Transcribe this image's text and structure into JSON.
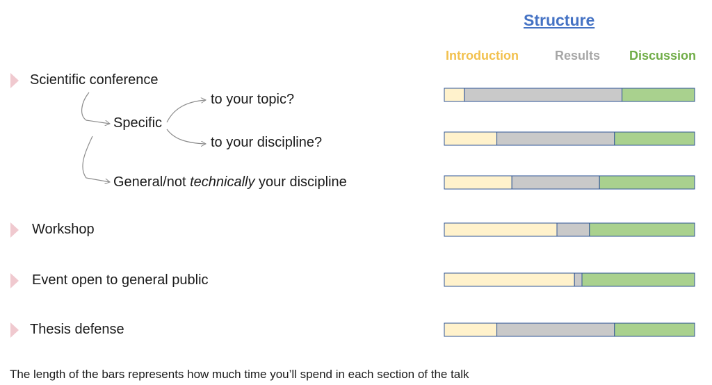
{
  "title": "Structure",
  "legend": [
    {
      "label": "Introduction",
      "color": "#f2c14e"
    },
    {
      "label": "Results",
      "color": "#a6a6a6"
    },
    {
      "label": "Discussion",
      "color": "#70ad47"
    }
  ],
  "items": [
    {
      "label": "Scientific conference"
    },
    {
      "label": "Workshop"
    },
    {
      "label": "Event open to general public"
    },
    {
      "label": "Thesis defense"
    }
  ],
  "branch": {
    "specific": "Specific",
    "topic": "to your topic?",
    "discipline": "to your discipline?",
    "general_pre": "General/not ",
    "general_em": "technically",
    "general_post": " your discipline"
  },
  "footnote": "The length of the bars represents how much time you’ll spend in each section of the talk",
  "chart_data": {
    "type": "bar",
    "orientation": "horizontal",
    "stacked": true,
    "title": "Structure",
    "categories": [
      "Scientific conference – Specific – to your topic?",
      "Scientific conference – Specific – to your discipline?",
      "Scientific conference – General/not technically your discipline",
      "Workshop",
      "Event open to general public",
      "Thesis defense"
    ],
    "series": [
      {
        "name": "Introduction",
        "values": [
          8,
          21,
          27,
          45,
          52,
          21
        ],
        "color": "#fff2cc"
      },
      {
        "name": "Results",
        "values": [
          63,
          47,
          35,
          13,
          3,
          47
        ],
        "color": "#c9c9c9"
      },
      {
        "name": "Discussion",
        "values": [
          29,
          32,
          38,
          42,
          45,
          32
        ],
        "color": "#a9d18e"
      }
    ],
    "xlim": [
      0,
      100
    ],
    "grid": false,
    "legend_position": "top"
  }
}
